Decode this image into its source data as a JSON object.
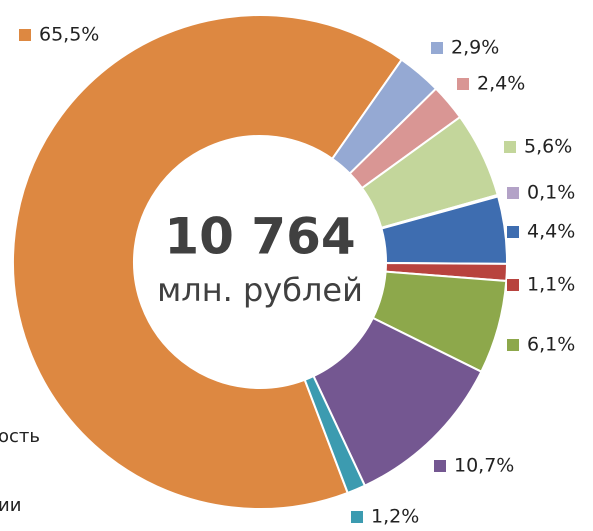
{
  "chart_data": {
    "type": "donut",
    "center_value": "10 764",
    "center_unit": "млн. рублей",
    "annotations": [
      "ость",
      "ии"
    ],
    "series": [
      {
        "values": [
          65.5,
          2.9,
          2.4,
          5.6,
          0.1,
          4.4,
          1.1,
          6.1,
          10.7,
          1.2
        ],
        "value_labels": [
          "65,5%",
          "2,9%",
          "2,4%",
          "5,6%",
          "0,1%",
          "4,4%",
          "1,1%",
          "6,1%",
          "10,7%",
          "1,2%"
        ],
        "colors": [
          "#dd8841",
          "#95a9d3",
          "#d99694",
          "#c3d69b",
          "#b3a2c7",
          "#3e6db0",
          "#b8433e",
          "#8da84b",
          "#745791",
          "#3c9bb0"
        ]
      }
    ]
  }
}
